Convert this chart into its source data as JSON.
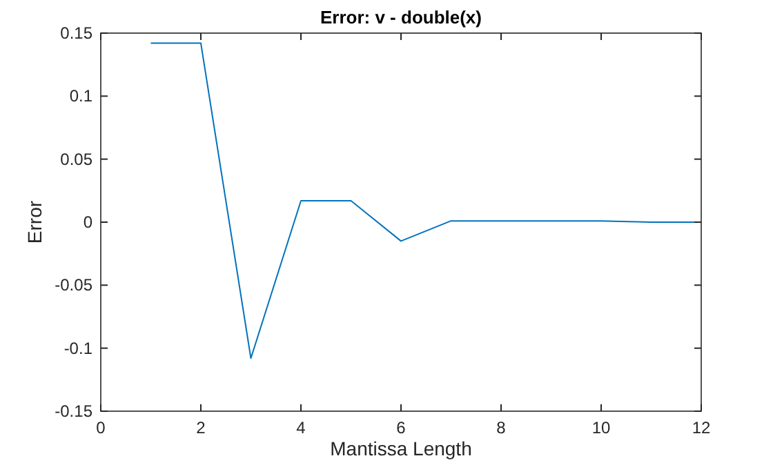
{
  "chart_data": {
    "type": "line",
    "title": "Error: v - double(x)",
    "xlabel": "Mantissa Length",
    "ylabel": "Error",
    "x": [
      1,
      2,
      3,
      4,
      5,
      6,
      7,
      8,
      9,
      10,
      11,
      12
    ],
    "series": [
      {
        "color": "#0072bd",
        "values": [
          0.142,
          0.142,
          -0.108,
          0.017,
          0.017,
          -0.015,
          0.001,
          0.001,
          0.001,
          0.001,
          0,
          0
        ]
      }
    ],
    "xlim": [
      0,
      12
    ],
    "xticks": [
      0,
      2,
      4,
      6,
      8,
      10,
      12
    ],
    "ylim": [
      -0.15,
      0.15
    ],
    "yticks": [
      -0.15,
      -0.1,
      -0.05,
      0,
      0.05,
      0.1,
      0.15
    ],
    "marker": "none",
    "line_style": "solid"
  }
}
